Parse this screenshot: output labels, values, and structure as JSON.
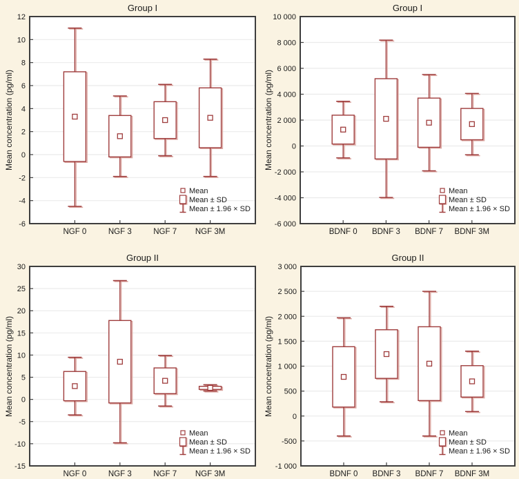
{
  "colors": {
    "background": "#FAF3E2",
    "plot_bg": "#FFFFFF",
    "grid": "#EBEBEB",
    "frame": "#3D3D3D",
    "box_stroke": "#9E3B3B",
    "box_shadow": "#DCA8A2",
    "text": "#1A1A1A"
  },
  "chart_data": [
    {
      "type": "box",
      "title": "Group I",
      "ylabel": "Mean concentration (pg/ml)",
      "ylim": [
        -6,
        12
      ],
      "yticks": [
        {
          "v": 12,
          "label": "12"
        },
        {
          "v": 10,
          "label": "10"
        },
        {
          "v": 8,
          "label": "8"
        },
        {
          "v": 6,
          "label": "6"
        },
        {
          "v": 4,
          "label": "4"
        },
        {
          "v": 2,
          "label": "2"
        },
        {
          "v": 0,
          "label": "0"
        },
        {
          "v": -2,
          "label": "-2"
        },
        {
          "v": -4,
          "label": "-4"
        },
        {
          "v": -6,
          "label": "-6"
        }
      ],
      "categories": [
        "NGF 0",
        "NGF 3",
        "NGF 7",
        "NGF 3M"
      ],
      "series": [
        {
          "category": "NGF 0",
          "mean": 3.3,
          "sd_low": -0.6,
          "sd_high": 7.2,
          "w_low": -4.5,
          "w_high": 11.0
        },
        {
          "category": "NGF 3",
          "mean": 1.6,
          "sd_low": -0.2,
          "sd_high": 3.4,
          "w_low": -1.9,
          "w_high": 5.1
        },
        {
          "category": "NGF 7",
          "mean": 3.0,
          "sd_low": 1.4,
          "sd_high": 4.6,
          "w_low": -0.1,
          "w_high": 6.1
        },
        {
          "category": "NGF 3M",
          "mean": 3.2,
          "sd_low": 0.6,
          "sd_high": 5.8,
          "w_low": -1.9,
          "w_high": 8.3
        }
      ],
      "legend": [
        "Mean",
        "Mean ± SD",
        "Mean ± 1.96 × SD"
      ],
      "legend_position": "bottom-right",
      "grid": "horizontal"
    },
    {
      "type": "box",
      "title": "Group I",
      "ylabel": "Mean concentration (pg/ml)",
      "ylim": [
        -6000,
        10000
      ],
      "yticks": [
        {
          "v": 10000,
          "label": "10 000"
        },
        {
          "v": 8000,
          "label": "8 000"
        },
        {
          "v": 6000,
          "label": "6 000"
        },
        {
          "v": 4000,
          "label": "4 000"
        },
        {
          "v": 2000,
          "label": "2 000"
        },
        {
          "v": 0,
          "label": "0"
        },
        {
          "v": -2000,
          "label": "-2 000"
        },
        {
          "v": -4000,
          "label": "-4 000"
        },
        {
          "v": -6000,
          "label": "-6 000"
        }
      ],
      "categories": [
        "BDNF 0",
        "BDNF 3",
        "BDNF 7",
        "BDNF 3M"
      ],
      "series": [
        {
          "category": "BDNF 0",
          "mean": 1265,
          "sd_low": 150,
          "sd_high": 2380,
          "w_low": -920,
          "w_high": 3450
        },
        {
          "category": "BDNF 3",
          "mean": 2100,
          "sd_low": -1000,
          "sd_high": 5200,
          "w_low": -3980,
          "w_high": 8180
        },
        {
          "category": "BDNF 7",
          "mean": 1800,
          "sd_low": -100,
          "sd_high": 3700,
          "w_low": -1920,
          "w_high": 5520
        },
        {
          "category": "BDNF 3M",
          "mean": 1690,
          "sd_low": 480,
          "sd_high": 2900,
          "w_low": -680,
          "w_high": 4060
        }
      ],
      "legend": [
        "Mean",
        "Mean ± SD",
        "Mean ± 1.96 × SD"
      ],
      "legend_position": "bottom-right",
      "grid": "horizontal"
    },
    {
      "type": "box",
      "title": "Group II",
      "ylabel": "Mean concentration (pg/ml)",
      "ylim": [
        -15,
        30
      ],
      "yticks": [
        {
          "v": 30,
          "label": "30"
        },
        {
          "v": 25,
          "label": "25"
        },
        {
          "v": 20,
          "label": "20"
        },
        {
          "v": 15,
          "label": "15"
        },
        {
          "v": 10,
          "label": "10"
        },
        {
          "v": 5,
          "label": "5"
        },
        {
          "v": 0,
          "label": "0"
        },
        {
          "v": -5,
          "label": "-5"
        },
        {
          "v": -10,
          "label": "-10"
        },
        {
          "v": -15,
          "label": "-15"
        }
      ],
      "categories": [
        "NGF 0",
        "NGF 3",
        "NGF 7",
        "NGF 3M"
      ],
      "series": [
        {
          "category": "NGF 0",
          "mean": 3.0,
          "sd_low": -0.3,
          "sd_high": 6.3,
          "w_low": -3.5,
          "w_high": 9.5
        },
        {
          "category": "NGF 3",
          "mean": 8.5,
          "sd_low": -0.8,
          "sd_high": 17.8,
          "w_low": -9.8,
          "w_high": 26.8
        },
        {
          "category": "NGF 7",
          "mean": 4.2,
          "sd_low": 1.3,
          "sd_high": 7.1,
          "w_low": -1.5,
          "w_high": 9.9
        },
        {
          "category": "NGF 3M",
          "mean": 2.6,
          "sd_low": 2.25,
          "sd_high": 2.95,
          "w_low": 1.9,
          "w_high": 3.3
        }
      ],
      "legend": [
        "Mean",
        "Mean ± SD",
        "Mean ± 1.96 × SD"
      ],
      "legend_position": "bottom-right",
      "grid": "horizontal"
    },
    {
      "type": "box",
      "title": "Group II",
      "ylabel": "Mean concentration (pg/ml)",
      "ylim": [
        -1000,
        3000
      ],
      "yticks": [
        {
          "v": 3000,
          "label": "3 000"
        },
        {
          "v": 2500,
          "label": "2 500"
        },
        {
          "v": 2000,
          "label": "2 000"
        },
        {
          "v": 1500,
          "label": "1 500"
        },
        {
          "v": 1000,
          "label": "1 000"
        },
        {
          "v": 500,
          "label": "500"
        },
        {
          "v": 0,
          "label": "0"
        },
        {
          "v": -500,
          "label": "-500"
        },
        {
          "v": -1000,
          "label": "-1 000"
        }
      ],
      "categories": [
        "BDNF 0",
        "BDNF 3",
        "BDNF 7",
        "BDNF 3M"
      ],
      "series": [
        {
          "category": "BDNF 0",
          "mean": 785,
          "sd_low": 180,
          "sd_high": 1390,
          "w_low": -400,
          "w_high": 1970
        },
        {
          "category": "BDNF 3",
          "mean": 1242,
          "sd_low": 755,
          "sd_high": 1730,
          "w_low": 285,
          "w_high": 2200
        },
        {
          "category": "BDNF 7",
          "mean": 1050,
          "sd_low": 310,
          "sd_high": 1790,
          "w_low": -400,
          "w_high": 2500
        },
        {
          "category": "BDNF 3M",
          "mean": 695,
          "sd_low": 380,
          "sd_high": 1010,
          "w_low": 90,
          "w_high": 1300
        }
      ],
      "legend": [
        "Mean",
        "Mean ± SD",
        "Mean ± 1.96 × SD"
      ],
      "legend_position": "bottom-right",
      "grid": "horizontal"
    }
  ]
}
